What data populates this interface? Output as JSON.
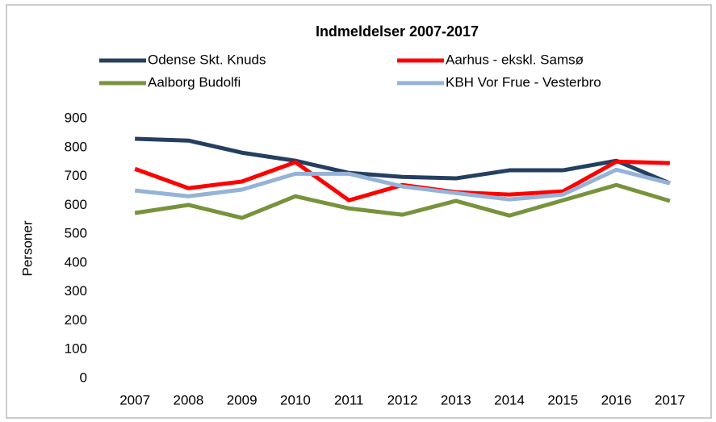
{
  "chart_data": {
    "type": "line",
    "title": "Indmeldelser 2007-2017",
    "ylabel": "Personer",
    "categories": [
      "2007",
      "2008",
      "2009",
      "2010",
      "2011",
      "2012",
      "2013",
      "2014",
      "2015",
      "2016",
      "2017"
    ],
    "series": [
      {
        "name": "Odense Skt. Knuds",
        "color": "#243f60",
        "values": [
          830,
          824,
          782,
          754,
          712,
          698,
          693,
          721,
          721,
          754,
          676
        ]
      },
      {
        "name": "Aarhus - ekskl. Samsø",
        "color": "#ff0000",
        "values": [
          726,
          659,
          682,
          749,
          617,
          670,
          645,
          637,
          648,
          751,
          746
        ]
      },
      {
        "name": "Aalborg Budolfi",
        "color": "#77933c",
        "values": [
          573,
          601,
          556,
          631,
          589,
          567,
          615,
          564,
          617,
          670,
          615
        ]
      },
      {
        "name": "KBH Vor Frue - Vesterbro",
        "color": "#95b3d7",
        "values": [
          651,
          631,
          654,
          709,
          709,
          665,
          642,
          620,
          637,
          723,
          676
        ]
      }
    ],
    "ylim": [
      0,
      900
    ],
    "yticks": [
      0,
      100,
      200,
      300,
      400,
      500,
      600,
      700,
      800,
      900
    ],
    "grid": false,
    "legend": "top"
  }
}
